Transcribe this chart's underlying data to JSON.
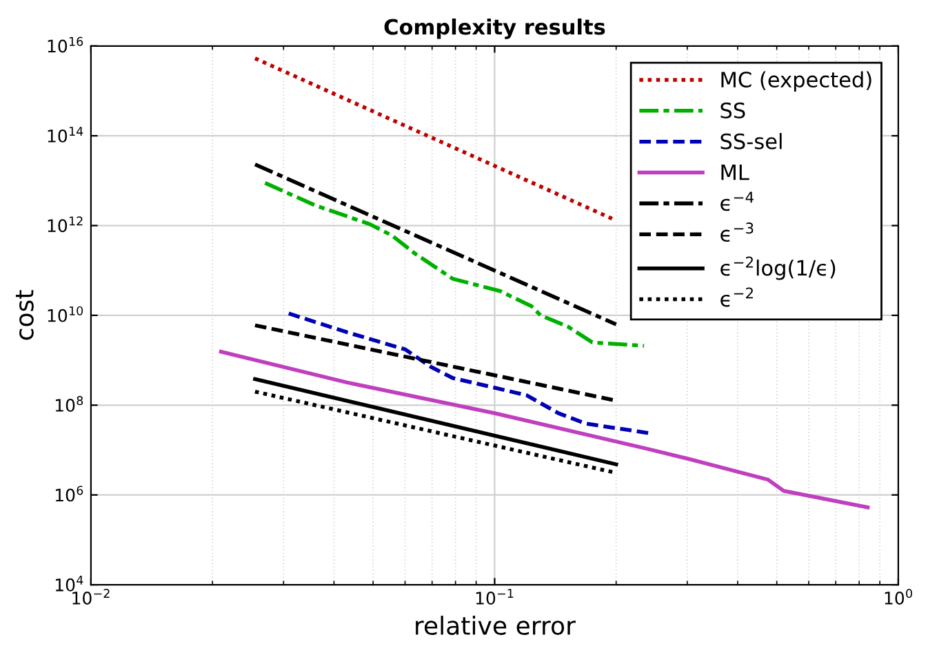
{
  "chart_data": {
    "type": "line",
    "title": "Complexity results",
    "xlabel": "relative error",
    "ylabel": "cost",
    "log": "xy",
    "grid": true,
    "legend": "top right",
    "xlim": [
      0.01,
      1
    ],
    "ylim": [
      10000,
      1e+16
    ],
    "xticks": [
      {
        "value": 0.01,
        "label": "10$^{−2}$"
      },
      {
        "value": 0.1,
        "label": "10$^{−1}$"
      },
      {
        "value": 1,
        "label": "10$^{0}$"
      }
    ],
    "yticks": [
      {
        "value": 10000,
        "label": "10$^{4}$"
      },
      {
        "value": 1000000,
        "label": "10$^{6}$"
      },
      {
        "value": 100000000,
        "label": "10$^{8}$"
      },
      {
        "value": 10000000000,
        "label": "10$^{10}$"
      },
      {
        "value": 1000000000000,
        "label": "10$^{12}$"
      },
      {
        "value": 100000000000000,
        "label": "10$^{14}$"
      },
      {
        "value": 1e+16,
        "label": "10$^{16}$"
      }
    ],
    "series": [
      {
        "name": "MC (expected)",
        "color": "#c00000",
        "line_style": "dotted",
        "x": [
          0.0255,
          0.2
        ],
        "values": [
          5300000000000000.0,
          1300000000000.0
        ]
      },
      {
        "name": "SS",
        "color": "#00b000",
        "line_style": "dashdot",
        "x": [
          0.027,
          0.036,
          0.049,
          0.0557,
          0.0634,
          0.0788,
          0.103,
          0.1234,
          0.13,
          0.152,
          0.1746,
          0.2345
        ],
        "values": [
          8900000000000.0,
          2800000000000.0,
          1080000000000.0,
          600000000000.0,
          240000000000.0,
          65000000000.0,
          35000000000.0,
          16000000000.0,
          10000000000.0,
          5600000000.0,
          2500000000.0,
          2100000000.0
        ]
      },
      {
        "name": "SS-sel",
        "color": "#0000b4",
        "line_style": "dashed",
        "x": [
          0.0309,
          0.0431,
          0.0601,
          0.0692,
          0.0788,
          0.099,
          0.12,
          0.144,
          0.168,
          0.247
        ],
        "values": [
          11000000000.0,
          4200000000.0,
          1740000000.0,
          730000000.0,
          400000000.0,
          250000000.0,
          166000000.0,
          66000000.0,
          39000000.0,
          23000000.0
        ]
      },
      {
        "name": "ML",
        "color": "#bf3fbf",
        "line_style": "solid",
        "x": [
          0.021,
          0.0431,
          0.1,
          0.2405,
          0.303,
          0.475,
          0.52,
          0.84
        ],
        "values": [
          1550000000.0,
          320000000.0,
          66000000.0,
          10500000.0,
          6300000.0,
          2200000.0,
          1230000.0,
          530000.0
        ]
      },
      {
        "name": "ϵ$^{−4}$",
        "color": "#000000",
        "line_style": "dashdot",
        "x": [
          0.0255,
          0.2
        ],
        "values": [
          23000000000000.0,
          6300000000.0
        ]
      },
      {
        "name": "ϵ$^{−3}$",
        "color": "#000000",
        "line_style": "dashed",
        "x": [
          0.0255,
          0.2
        ],
        "values": [
          6000000000.0,
          126000000.0
        ]
      },
      {
        "name": "ϵ$^{−2}$log(1/ϵ)",
        "color": "#000000",
        "line_style": "solid",
        "x": [
          0.0255,
          0.2
        ],
        "values": [
          380000000.0,
          4800000.0
        ]
      },
      {
        "name": "ϵ$^{−2}$",
        "color": "#000000",
        "line_style": "dotted",
        "x": [
          0.0255,
          0.2
        ],
        "values": [
          200000000.0,
          3100000.0
        ]
      }
    ]
  }
}
